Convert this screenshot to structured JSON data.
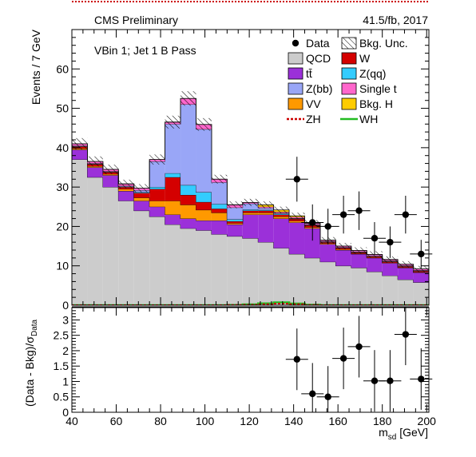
{
  "header": {
    "left_label": "CMS Preliminary",
    "right_label": "41.5/fb, 2017"
  },
  "region_label": "VBin 1; Jet 1 B Pass",
  "colors": {
    "QCD": "#cccccc",
    "tt": "#9b30d9",
    "Zbb": "#99a6f7",
    "VV": "#ff9900",
    "W": "#d40000",
    "Zqq": "#33ccff",
    "Single_t": "#ff66cc",
    "BkgH": "#ffcc00",
    "ZH": "#cc0000",
    "WH": "#22bb22",
    "outline": "#111111"
  },
  "chart_data": [
    {
      "type": "area",
      "panel": "main",
      "stacked": true,
      "ylabel": "Events / 7 GeV",
      "xlabel": "",
      "xlim": [
        40,
        201
      ],
      "ylim": [
        0,
        70
      ],
      "yticks": [
        0,
        10,
        20,
        30,
        40,
        50,
        60
      ],
      "xticks": [
        40,
        60,
        80,
        100,
        120,
        140,
        160,
        180,
        200
      ],
      "bin_edges": [
        40,
        47,
        54,
        61,
        68,
        75,
        82,
        89,
        96,
        103,
        110,
        117,
        124,
        131,
        138,
        145,
        152,
        159,
        166,
        173,
        180,
        187,
        194,
        201
      ],
      "grid": false,
      "legend_position": "top-right",
      "legend": [
        {
          "key": "Data",
          "label": "Data",
          "style": "marker"
        },
        {
          "key": "BkgUnc",
          "label": "Bkg. Unc.",
          "style": "hatch"
        },
        {
          "key": "QCD",
          "label": "QCD",
          "style": "fill"
        },
        {
          "key": "W",
          "label": "W",
          "style": "fill"
        },
        {
          "key": "tt",
          "label": "tt̄",
          "style": "fill"
        },
        {
          "key": "Zqq",
          "label": "Z(qq)",
          "style": "fill"
        },
        {
          "key": "Zbb",
          "label": "Z(bb)",
          "style": "fill"
        },
        {
          "key": "Single_t",
          "label": "Single t",
          "style": "fill"
        },
        {
          "key": "VV",
          "label": "VV",
          "style": "fill"
        },
        {
          "key": "BkgH",
          "label": "Bkg. H",
          "style": "fill"
        },
        {
          "key": "ZH",
          "label": "ZH",
          "style": "dashed"
        },
        {
          "key": "WH",
          "label": "WH",
          "style": "line"
        }
      ],
      "stack": [
        {
          "key": "QCD",
          "values": [
            37,
            32.5,
            30,
            26.5,
            24,
            22.5,
            20.5,
            19.5,
            19,
            18,
            17.5,
            17,
            16,
            14.5,
            13,
            12,
            11,
            10,
            9.5,
            8.5,
            7.5,
            6.5,
            5.8
          ]
        },
        {
          "key": "tt",
          "values": [
            2.5,
            2.5,
            3,
            2.5,
            2.5,
            2.5,
            2.5,
            2.5,
            2.5,
            3.5,
            3,
            6,
            7,
            7.5,
            8,
            7.5,
            4.5,
            4,
            3.5,
            3.5,
            3.2,
            3,
            2.5
          ]
        },
        {
          "key": "VV",
          "values": [
            0.3,
            0.3,
            0.3,
            0.5,
            0.8,
            1.5,
            3.5,
            3.5,
            2.7,
            2,
            0.3,
            0.5,
            0.5,
            0.5,
            0.4,
            0.3,
            0.2,
            0.2,
            0.1,
            0.1,
            0.1,
            0.1,
            0.1
          ]
        },
        {
          "key": "W",
          "values": [
            0.5,
            0.5,
            0.5,
            0.5,
            1.2,
            3,
            6,
            2.5,
            2,
            1,
            0.5,
            0.5,
            0.5,
            0.5,
            0.5,
            0.5,
            0.3,
            0.3,
            0.3,
            0.3,
            0.3,
            0.3,
            0.3
          ]
        },
        {
          "key": "Zqq",
          "values": [
            0.1,
            0.1,
            0.1,
            0.1,
            0.2,
            0.5,
            1,
            2.5,
            2.5,
            1.2,
            0.5,
            0.3,
            0.2,
            0.2,
            0.1,
            0.1,
            0.1,
            0.1,
            0.1,
            0.1,
            0.1,
            0.1,
            0.1
          ]
        },
        {
          "key": "Zbb",
          "values": [
            0.1,
            0.1,
            0.1,
            0.2,
            0.5,
            6.5,
            12.5,
            20.5,
            16,
            5.5,
            3,
            1.5,
            0.5,
            0.2,
            0.1,
            0.1,
            0.1,
            0.1,
            0.1,
            0.1,
            0.1,
            0.1,
            0.1
          ]
        },
        {
          "key": "Single_t",
          "values": [
            0.5,
            0.5,
            0.5,
            0.5,
            0.5,
            0.5,
            0.5,
            1.5,
            1.2,
            0.8,
            0.7,
            0.3,
            0.3,
            0.3,
            0.3,
            0.3,
            0.3,
            0.3,
            0.3,
            0.3,
            0.3,
            0.3,
            0.3
          ]
        },
        {
          "key": "BkgH",
          "values": [
            0,
            0,
            0,
            0,
            0,
            0,
            0,
            0,
            0,
            0,
            0,
            0,
            0.5,
            0.5,
            0.3,
            0,
            0,
            0,
            0,
            0,
            0,
            0,
            0
          ]
        }
      ],
      "overlays": [
        {
          "key": "WH",
          "values": [
            0,
            0,
            0,
            0,
            0,
            0,
            0,
            0,
            0,
            0,
            0.05,
            0.2,
            0.45,
            0.7,
            0.4,
            0.1,
            0,
            0,
            0,
            0,
            0,
            0,
            0
          ]
        },
        {
          "key": "ZH",
          "values": [
            0,
            0,
            0,
            0,
            0,
            0,
            0,
            0,
            0,
            0,
            0.05,
            0.1,
            0.25,
            0.4,
            0.25,
            0.05,
            0,
            0,
            0,
            0,
            0,
            0,
            0
          ]
        }
      ],
      "data_points": [
        {
          "x": 141.5,
          "y": 32,
          "err": 5.7
        },
        {
          "x": 148.5,
          "y": 21,
          "err": 4.6
        },
        {
          "x": 155.5,
          "y": 20,
          "err": 4.5
        },
        {
          "x": 162.5,
          "y": 23,
          "err": 4.8
        },
        {
          "x": 169.5,
          "y": 24,
          "err": 4.9
        },
        {
          "x": 176.5,
          "y": 17,
          "err": 4.1
        },
        {
          "x": 183.5,
          "y": 16,
          "err": 4.0
        },
        {
          "x": 190.5,
          "y": 23,
          "err": 4.8
        },
        {
          "x": 197.5,
          "y": 13,
          "err": 3.6
        }
      ]
    },
    {
      "type": "scatter",
      "panel": "ratio",
      "ylabel": "(Data - Bkg)/σ_Data",
      "xlabel": "m_sd [GeV]",
      "xlim": [
        40,
        201
      ],
      "ylim": [
        0,
        3.4
      ],
      "yticks": [
        0,
        0.5,
        1,
        1.5,
        2,
        2.5,
        3
      ],
      "xticks": [
        40,
        60,
        80,
        100,
        120,
        140,
        160,
        180,
        200
      ],
      "points": [
        {
          "x": 141.5,
          "y": 1.72,
          "err": 1
        },
        {
          "x": 148.5,
          "y": 0.6,
          "err": 1
        },
        {
          "x": 155.5,
          "y": 0.5,
          "err": 1
        },
        {
          "x": 162.5,
          "y": 1.75,
          "err": 1
        },
        {
          "x": 169.5,
          "y": 2.13,
          "err": 1
        },
        {
          "x": 176.5,
          "y": 1.02,
          "err": 1
        },
        {
          "x": 183.5,
          "y": 1.02,
          "err": 1
        },
        {
          "x": 190.5,
          "y": 2.53,
          "err": 1
        },
        {
          "x": 197.5,
          "y": 1.08,
          "err": 1
        }
      ]
    }
  ]
}
